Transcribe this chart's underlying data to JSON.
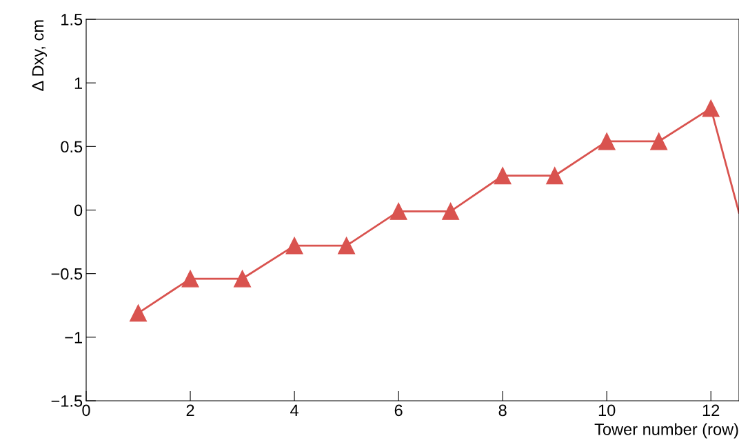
{
  "chart_data": {
    "type": "line",
    "xlabel": "Tower number (row)",
    "ylabel": "Δ Dxy, cm",
    "series": [
      {
        "color": "#d9534f",
        "x": [
          1,
          2,
          3,
          4,
          5,
          6,
          7,
          8,
          9,
          10,
          11,
          12
        ],
        "values": [
          -0.81,
          -0.54,
          -0.54,
          -0.28,
          -0.28,
          -0.01,
          -0.01,
          0.27,
          0.27,
          0.54,
          0.54,
          0.8
        ],
        "marker": "triangle"
      },
      {
        "color": "#d9534f",
        "x": [
          12,
          12.54
        ],
        "values": [
          0.8,
          -0.02
        ],
        "marker": "none"
      }
    ],
    "xlim": [
      0,
      12.54
    ],
    "xticks": [
      0,
      2,
      4,
      6,
      8,
      10,
      12
    ],
    "ylim": [
      -1.5,
      1.5
    ],
    "yticks": [
      {
        "value": -1.5,
        "label": "−1.5"
      },
      {
        "value": -1,
        "label": "−1"
      },
      {
        "value": -0.5,
        "label": "−0.5"
      },
      0,
      0.5,
      1,
      1.5
    ],
    "grid": false,
    "legend": false
  }
}
